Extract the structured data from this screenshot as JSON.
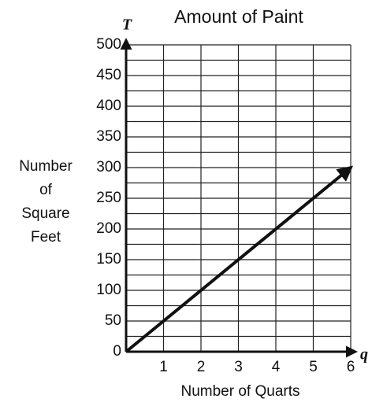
{
  "chart_data": {
    "type": "line",
    "title": "Amount of Paint",
    "x_label": "Number of Quarts",
    "y_label_lines": [
      "Number",
      "of",
      "Square",
      "Feet"
    ],
    "x_axis_symbol": "q",
    "y_axis_symbol": "T",
    "x": [
      0,
      6
    ],
    "series": [
      {
        "color": "#111111",
        "values": [
          0,
          300
        ]
      }
    ],
    "xlim": [
      0,
      6
    ],
    "xticks": [
      1,
      2,
      3,
      4,
      5,
      6
    ],
    "ylim": [
      0,
      500
    ],
    "yticks": [
      0,
      50,
      100,
      150,
      200,
      250,
      300,
      350,
      400,
      450,
      500
    ],
    "minor_yticks": [
      25,
      75,
      125,
      175,
      225,
      275,
      325,
      375,
      425,
      475
    ],
    "grid": true
  }
}
